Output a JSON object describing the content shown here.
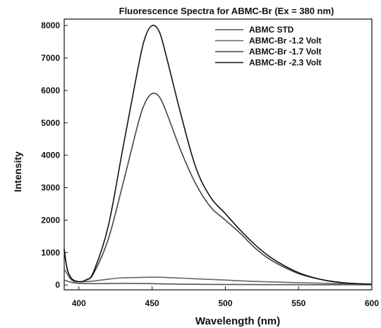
{
  "chart_data": {
    "type": "line",
    "title": "Fluorescence Spectra for ABMC-Br (Ex = 380 nm)",
    "xlabel": "Wavelength (nm)",
    "ylabel": "Intensity",
    "xlim": [
      390,
      600
    ],
    "ylim": [
      -150,
      8200
    ],
    "xticks": [
      400,
      450,
      500,
      550,
      600
    ],
    "yticks": [
      0,
      1000,
      2000,
      3000,
      4000,
      5000,
      6000,
      7000,
      8000
    ],
    "legend_position": "top-right",
    "series": [
      {
        "name": "ABMC STD",
        "color": "#555555",
        "x": [
          390,
          395,
          400,
          410,
          420,
          430,
          440,
          450,
          460,
          480,
          500,
          530,
          560,
          600
        ],
        "y": [
          150,
          80,
          50,
          40,
          45,
          50,
          45,
          40,
          30,
          20,
          15,
          10,
          8,
          5
        ]
      },
      {
        "name": "ABMC-Br -1.2 Volt",
        "color": "#666666",
        "x": [
          390,
          395,
          400,
          410,
          420,
          430,
          440,
          450,
          460,
          470,
          480,
          500,
          520,
          550,
          580,
          600
        ],
        "y": [
          500,
          150,
          100,
          120,
          180,
          220,
          230,
          240,
          230,
          210,
          190,
          150,
          110,
          70,
          40,
          25
        ]
      },
      {
        "name": "ABMC-Br -1.7 Volt",
        "color": "#444444",
        "x": [
          390,
          392,
          395,
          400,
          405,
          410,
          420,
          430,
          440,
          445,
          450,
          455,
          460,
          470,
          480,
          490,
          500,
          510,
          520,
          530,
          540,
          550,
          560,
          570,
          580,
          590,
          600
        ],
        "y": [
          1100,
          500,
          200,
          100,
          150,
          350,
          1400,
          3100,
          4900,
          5600,
          5900,
          5800,
          5300,
          4100,
          3100,
          2400,
          2000,
          1600,
          1150,
          800,
          550,
          350,
          220,
          130,
          70,
          40,
          25
        ]
      },
      {
        "name": "ABMC-Br -2.3 Volt",
        "color": "#111111",
        "x": [
          390,
          392,
          395,
          400,
          405,
          410,
          420,
          430,
          440,
          445,
          450,
          455,
          460,
          470,
          480,
          490,
          500,
          510,
          520,
          530,
          540,
          550,
          560,
          570,
          580,
          590,
          600
        ],
        "y": [
          1100,
          500,
          200,
          100,
          160,
          400,
          1800,
          4200,
          6600,
          7600,
          8000,
          7800,
          7000,
          5200,
          3600,
          2700,
          2200,
          1700,
          1250,
          880,
          600,
          380,
          230,
          130,
          70,
          40,
          25
        ]
      }
    ]
  }
}
